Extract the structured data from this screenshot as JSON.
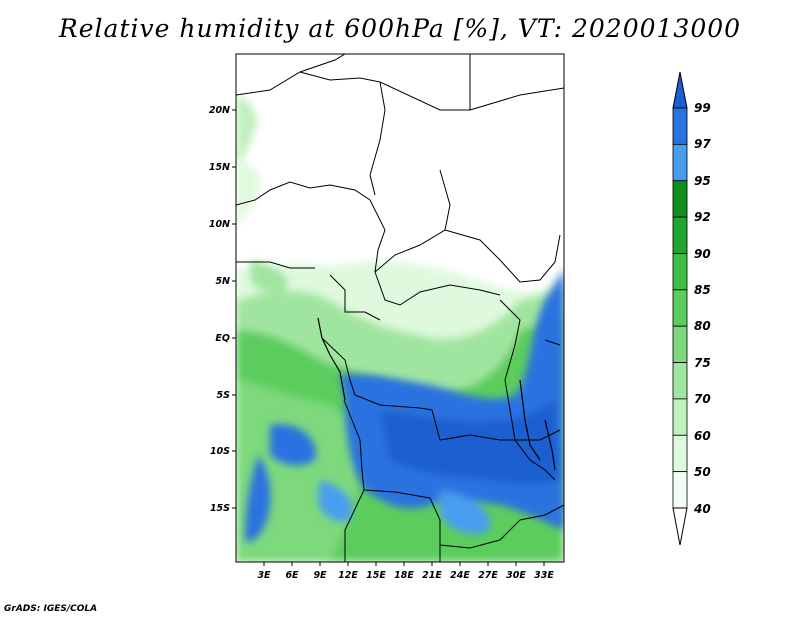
{
  "title": "Relative humidity at 600hPa [%], VT: 2020013000",
  "credit": "GrADS: IGES/COLA",
  "map": {
    "lat_ticks": [
      "20N",
      "15N",
      "10N",
      "5N",
      "EQ",
      "5S",
      "10S",
      "15S"
    ],
    "lon_ticks": [
      "3E",
      "6E",
      "9E",
      "12E",
      "15E",
      "18E",
      "21E",
      "24E",
      "27E",
      "30E",
      "33E"
    ]
  },
  "colorbar": {
    "labels": [
      "99",
      "97",
      "95",
      "92",
      "90",
      "85",
      "80",
      "75",
      "70",
      "60",
      "50",
      "40"
    ],
    "colors": [
      "#1a5fd0",
      "#2a72e0",
      "#4a9ef0",
      "#0f8f1e",
      "#22a532",
      "#3bbd46",
      "#5ccd5d",
      "#7dd97c",
      "#a0e59f",
      "#c1f0bf",
      "#dff9de",
      "#f3fef2"
    ]
  }
}
